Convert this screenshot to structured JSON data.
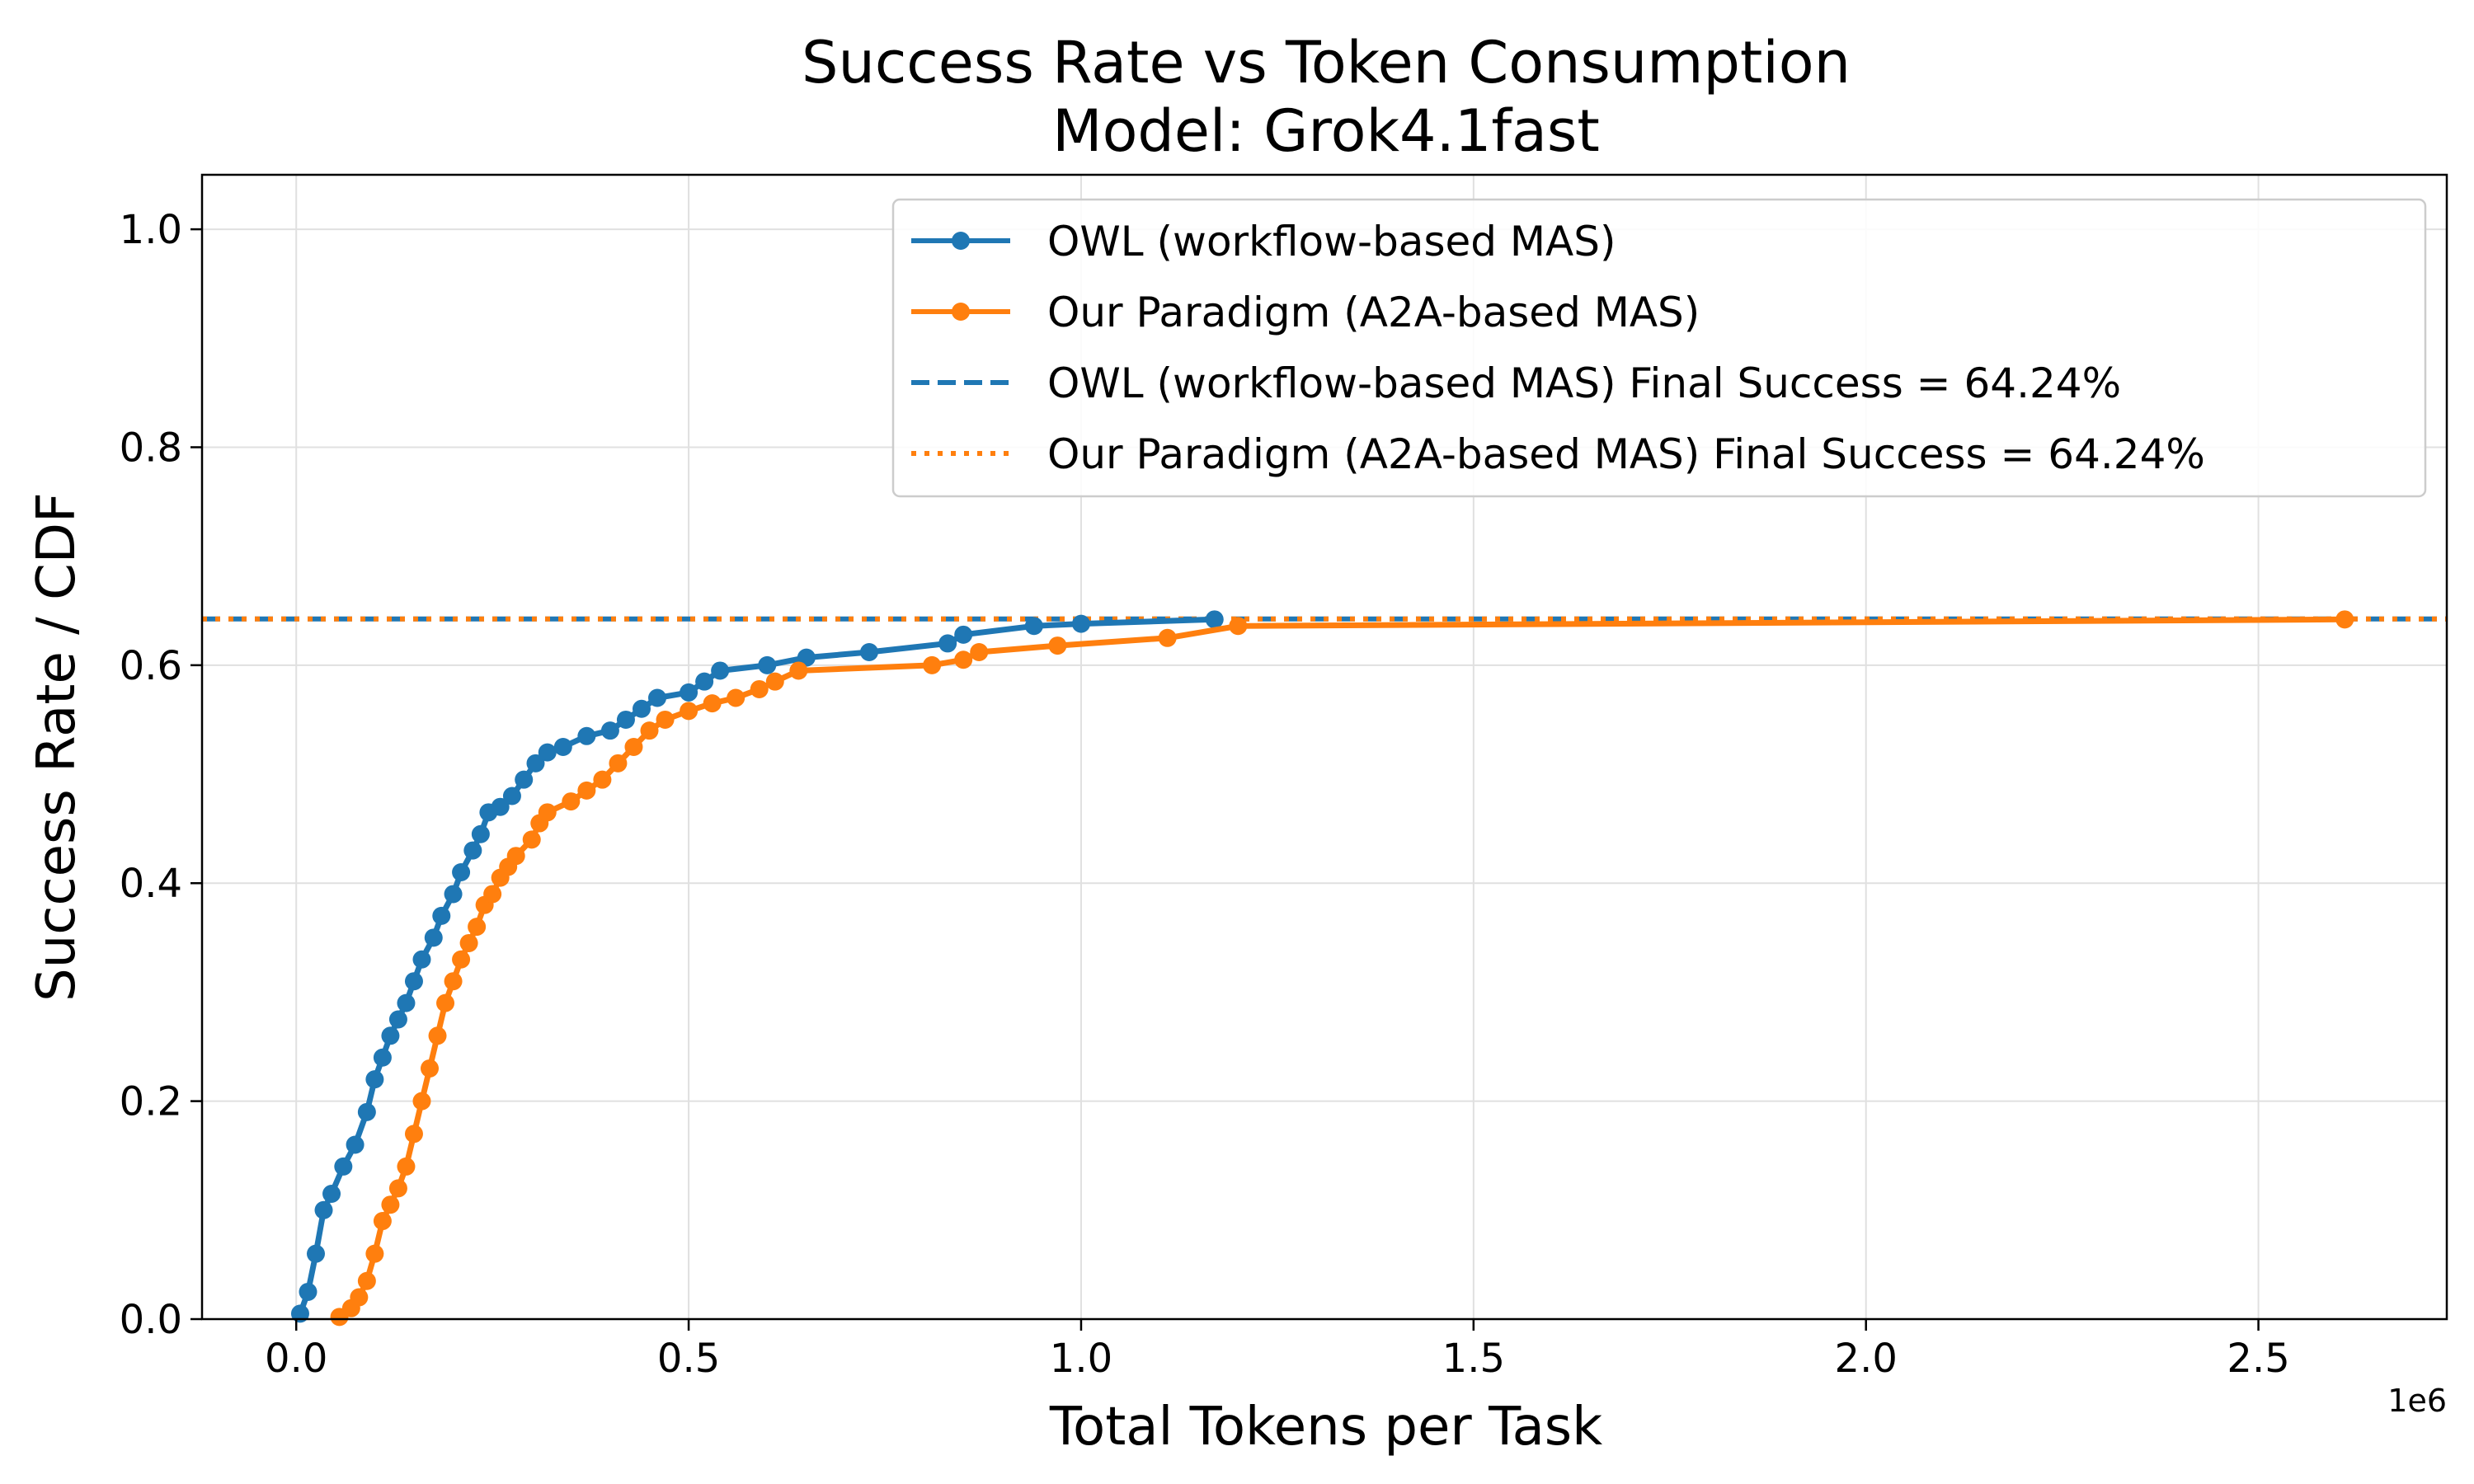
{
  "chart_data": {
    "type": "line",
    "title": "Success Rate vs Token Consumption",
    "subtitle": "Model: Grok4.1fast",
    "xlabel": "Total Tokens per Task",
    "ylabel": "Success Rate / CDF",
    "x_scale_label": "1e6",
    "xlim": [
      -0.12,
      2.74
    ],
    "ylim": [
      0.0,
      1.05
    ],
    "x_ticks": [
      0.0,
      0.5,
      1.0,
      1.5,
      2.0,
      2.5
    ],
    "x_tick_labels": [
      "0.0",
      "0.5",
      "1.0",
      "1.5",
      "2.0",
      "2.5"
    ],
    "y_ticks": [
      0.0,
      0.2,
      0.4,
      0.6,
      0.8,
      1.0
    ],
    "y_tick_labels": [
      "0.0",
      "0.2",
      "0.4",
      "0.6",
      "0.8",
      "1.0"
    ],
    "grid": true,
    "legend_position": "top-right",
    "series": [
      {
        "name": "OWL (workflow-based MAS)",
        "color": "#1f77b4",
        "style": "solid-marker",
        "x": [
          0.005,
          0.015,
          0.025,
          0.035,
          0.045,
          0.06,
          0.075,
          0.09,
          0.1,
          0.11,
          0.12,
          0.13,
          0.14,
          0.15,
          0.16,
          0.175,
          0.185,
          0.2,
          0.21,
          0.225,
          0.235,
          0.245,
          0.26,
          0.275,
          0.29,
          0.305,
          0.32,
          0.34,
          0.37,
          0.4,
          0.42,
          0.44,
          0.46,
          0.5,
          0.52,
          0.54,
          0.6,
          0.65,
          0.73,
          0.83,
          0.85,
          0.94,
          1.0,
          1.17
        ],
        "y": [
          0.005,
          0.025,
          0.06,
          0.1,
          0.115,
          0.14,
          0.16,
          0.19,
          0.22,
          0.24,
          0.26,
          0.275,
          0.29,
          0.31,
          0.33,
          0.35,
          0.37,
          0.39,
          0.41,
          0.43,
          0.445,
          0.465,
          0.47,
          0.48,
          0.495,
          0.51,
          0.52,
          0.525,
          0.535,
          0.54,
          0.55,
          0.56,
          0.57,
          0.575,
          0.585,
          0.595,
          0.6,
          0.607,
          0.612,
          0.62,
          0.628,
          0.636,
          0.638,
          0.642
        ]
      },
      {
        "name": "Our Paradigm (A2A-based MAS)",
        "color": "#ff7f0e",
        "style": "solid-marker",
        "x": [
          0.055,
          0.07,
          0.08,
          0.09,
          0.1,
          0.11,
          0.12,
          0.13,
          0.14,
          0.15,
          0.16,
          0.17,
          0.18,
          0.19,
          0.2,
          0.21,
          0.22,
          0.23,
          0.24,
          0.25,
          0.26,
          0.27,
          0.28,
          0.3,
          0.31,
          0.32,
          0.35,
          0.37,
          0.39,
          0.41,
          0.43,
          0.45,
          0.47,
          0.5,
          0.53,
          0.56,
          0.59,
          0.61,
          0.64,
          0.81,
          0.85,
          0.87,
          0.97,
          1.11,
          1.2,
          2.61
        ],
        "y": [
          0.002,
          0.01,
          0.02,
          0.035,
          0.06,
          0.09,
          0.105,
          0.12,
          0.14,
          0.17,
          0.2,
          0.23,
          0.26,
          0.29,
          0.31,
          0.33,
          0.345,
          0.36,
          0.38,
          0.39,
          0.405,
          0.415,
          0.425,
          0.44,
          0.455,
          0.465,
          0.475,
          0.485,
          0.495,
          0.51,
          0.525,
          0.54,
          0.55,
          0.558,
          0.565,
          0.57,
          0.578,
          0.585,
          0.595,
          0.6,
          0.605,
          0.612,
          0.618,
          0.625,
          0.636,
          0.642
        ]
      }
    ],
    "reference_lines": [
      {
        "name": "OWL (workflow-based MAS) Final Success = 64.24%",
        "y": 0.6424,
        "color": "#1f77b4",
        "style": "dashed"
      },
      {
        "name": "Our Paradigm (A2A-based MAS) Final Success = 64.24%",
        "y": 0.6424,
        "color": "#ff7f0e",
        "style": "dotted"
      }
    ]
  }
}
